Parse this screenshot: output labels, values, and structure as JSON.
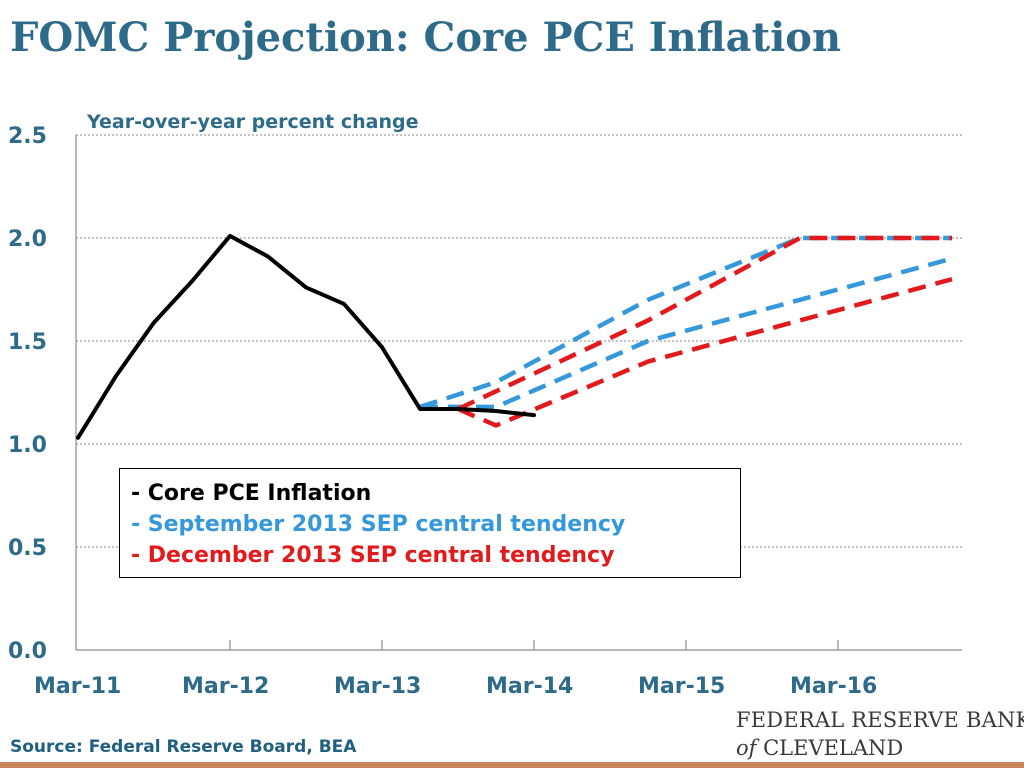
{
  "slide": {
    "title": "FOMC Projection: Core PCE Inflation",
    "source": "Source: Federal Reserve Board, BEA",
    "logo_line1": "FEDERAL RESERVE BANK",
    "logo_of": "of",
    "logo_line2_rest": " CLEVELAND"
  },
  "colors": {
    "title": "#2e6b8a",
    "core": "#000000",
    "september": "#3498db",
    "december": "#e31a1c",
    "accent_rule": "#c8865a"
  },
  "chart_data": {
    "type": "line",
    "title": "",
    "ylabel": "Year-over-year percent change",
    "xlabel": "",
    "ylim": [
      0.0,
      2.5
    ],
    "yticks": [
      "0.0",
      "0.5",
      "1.0",
      "1.5",
      "2.0",
      "2.5"
    ],
    "xlim": [
      "2011-03",
      "2016-12"
    ],
    "xticks": [
      "Mar-11",
      "Mar-12",
      "Mar-13",
      "Mar-14",
      "Mar-15",
      "Mar-16"
    ],
    "grid": "horizontal dotted",
    "legend_position": "center-left",
    "series": [
      {
        "name": "Core PCE Inflation",
        "color": "#000000",
        "style": "solid",
        "points": [
          {
            "x": "2011-03",
            "y": 1.03
          },
          {
            "x": "2011-06",
            "y": 1.33
          },
          {
            "x": "2011-09",
            "y": 1.59
          },
          {
            "x": "2011-12",
            "y": 1.79
          },
          {
            "x": "2012-03",
            "y": 2.01
          },
          {
            "x": "2012-06",
            "y": 1.91
          },
          {
            "x": "2012-09",
            "y": 1.76
          },
          {
            "x": "2012-12",
            "y": 1.68
          },
          {
            "x": "2013-03",
            "y": 1.47
          },
          {
            "x": "2013-06",
            "y": 1.17
          },
          {
            "x": "2013-09",
            "y": 1.17
          },
          {
            "x": "2013-12",
            "y": 1.16
          },
          {
            "x": "2014-03",
            "y": 1.14
          }
        ]
      },
      {
        "name": "September 2013 SEP central tendency",
        "color": "#3498db",
        "style": "dashed",
        "bounds": [
          {
            "label": "upper",
            "points": [
              {
                "x": "2013-06",
                "y": 1.18
              },
              {
                "x": "2013-12",
                "y": 1.3
              },
              {
                "x": "2014-12",
                "y": 1.7
              },
              {
                "x": "2015-12",
                "y": 2.0
              },
              {
                "x": "2016-12",
                "y": 2.0
              }
            ]
          },
          {
            "label": "lower",
            "points": [
              {
                "x": "2013-06",
                "y": 1.18
              },
              {
                "x": "2013-12",
                "y": 1.18
              },
              {
                "x": "2014-12",
                "y": 1.5
              },
              {
                "x": "2015-12",
                "y": 1.7
              },
              {
                "x": "2016-12",
                "y": 1.9
              }
            ]
          }
        ]
      },
      {
        "name": "December 2013 SEP central tendency",
        "color": "#e31a1c",
        "style": "dashed",
        "bounds": [
          {
            "label": "upper",
            "points": [
              {
                "x": "2013-09",
                "y": 1.17
              },
              {
                "x": "2014-12",
                "y": 1.6
              },
              {
                "x": "2015-12",
                "y": 2.0
              },
              {
                "x": "2016-12",
                "y": 2.0
              }
            ]
          },
          {
            "label": "lower",
            "points": [
              {
                "x": "2013-09",
                "y": 1.17
              },
              {
                "x": "2013-12",
                "y": 1.09
              },
              {
                "x": "2014-12",
                "y": 1.4
              },
              {
                "x": "2015-12",
                "y": 1.6
              },
              {
                "x": "2016-12",
                "y": 1.8
              }
            ]
          }
        ]
      }
    ]
  },
  "legend": {
    "items": [
      {
        "label": "- Core PCE Inflation",
        "color": "#000000"
      },
      {
        "label": "- September 2013 SEP central tendency",
        "color": "#3498db"
      },
      {
        "label": "- December 2013 SEP central tendency",
        "color": "#e31a1c"
      }
    ]
  }
}
